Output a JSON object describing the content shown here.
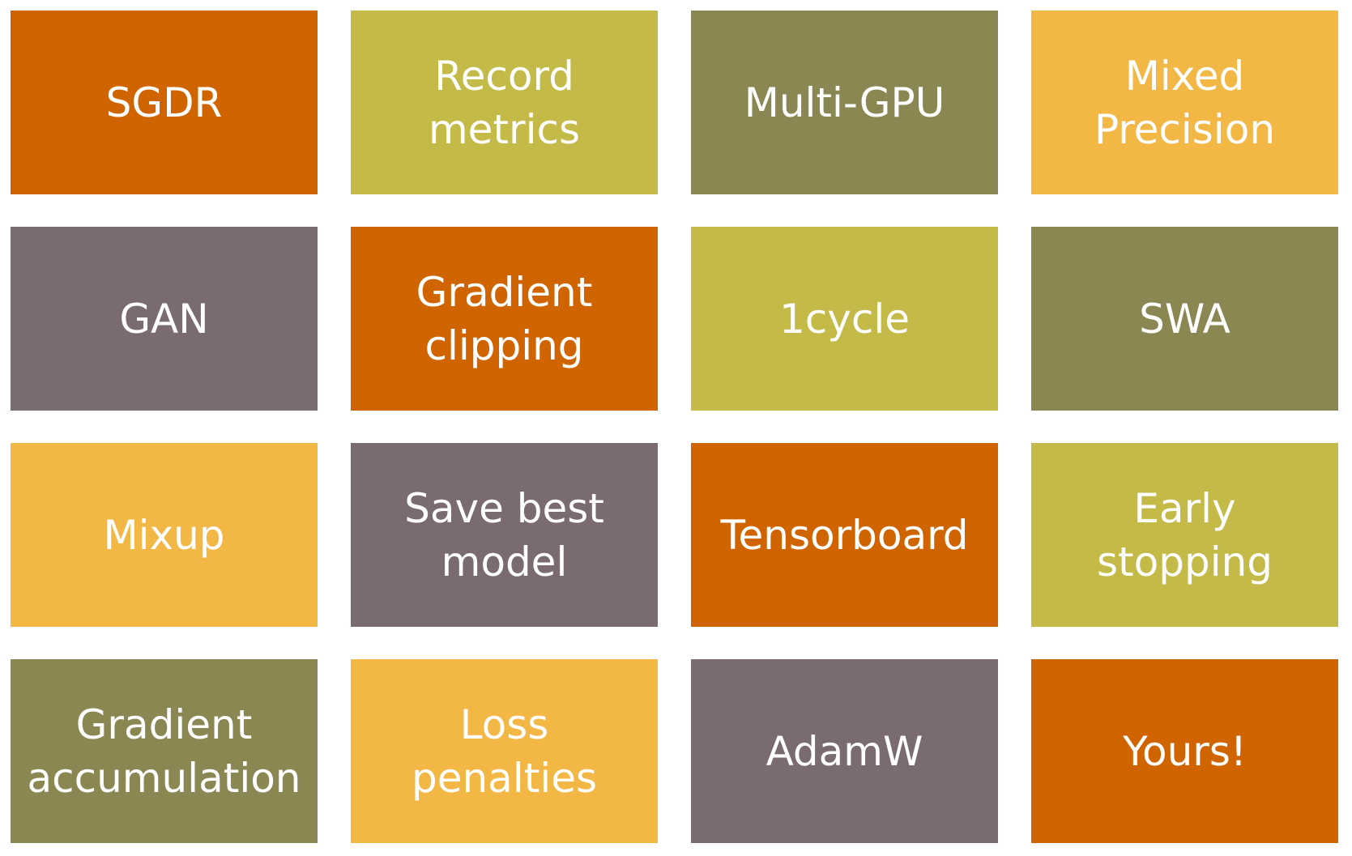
{
  "colors": {
    "orange": "#D06400",
    "lime": "#C4BA47",
    "olive": "#8B8753",
    "yellow": "#F2B744",
    "gray": "#796B6F",
    "text": "#FFFFFF"
  },
  "tiles": [
    {
      "label": "SGDR",
      "color": "orange"
    },
    {
      "label": "Record\nmetrics",
      "color": "lime"
    },
    {
      "label": "Multi-GPU",
      "color": "olive"
    },
    {
      "label": "Mixed\nPrecision",
      "color": "yellow"
    },
    {
      "label": "GAN",
      "color": "gray"
    },
    {
      "label": "Gradient\nclipping",
      "color": "orange"
    },
    {
      "label": "1cycle",
      "color": "lime"
    },
    {
      "label": "SWA",
      "color": "olive"
    },
    {
      "label": "Mixup",
      "color": "yellow"
    },
    {
      "label": "Save best\nmodel",
      "color": "gray"
    },
    {
      "label": "Tensorboard",
      "color": "orange"
    },
    {
      "label": "Early\nstopping",
      "color": "lime"
    },
    {
      "label": "Gradient\naccumulation",
      "color": "olive"
    },
    {
      "label": "Loss\npenalties",
      "color": "yellow"
    },
    {
      "label": "AdamW",
      "color": "gray"
    },
    {
      "label": "Yours!",
      "color": "orange"
    }
  ]
}
